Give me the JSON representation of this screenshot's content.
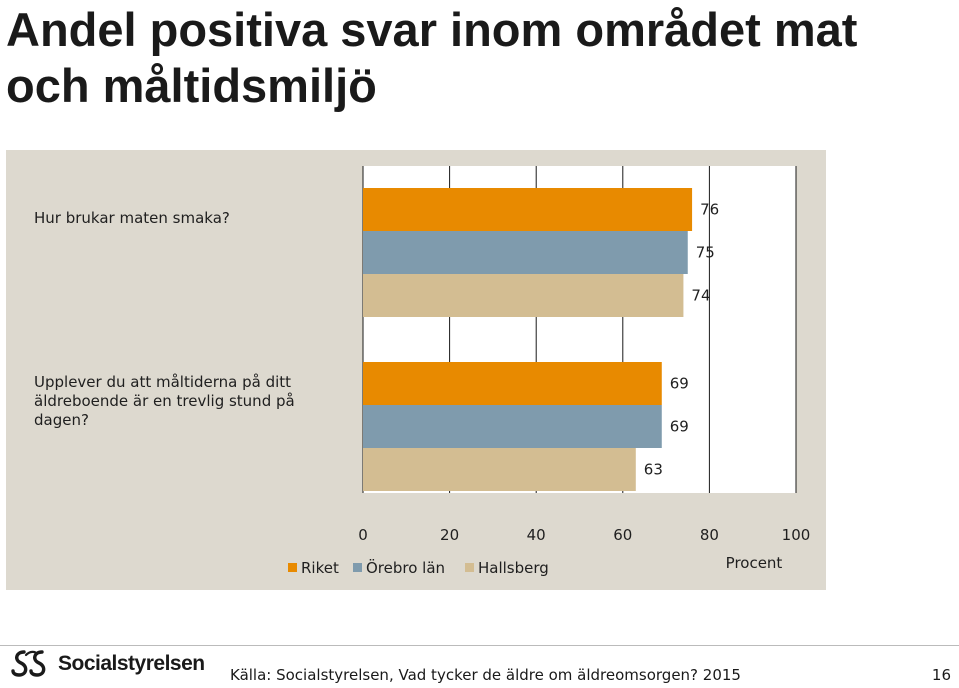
{
  "title": "Andel positiva svar inom området mat och måltidsmiljö",
  "chart_data": {
    "type": "bar",
    "orientation": "horizontal",
    "categories": [
      "Hur brukar maten smaka?",
      "Upplever du att måltiderna på ditt äldreboende är en trevlig stund på dagen?"
    ],
    "series": [
      {
        "name": "Riket",
        "color": "#e88a00",
        "values": [
          76,
          69
        ]
      },
      {
        "name": "Örebro län",
        "color": "#7f9bad",
        "values": [
          75,
          69
        ]
      },
      {
        "name": "Hallsberg",
        "color": "#d3bd92",
        "values": [
          74,
          63
        ]
      }
    ],
    "xlim": [
      0,
      100
    ],
    "xticks": [
      "0",
      "20",
      "40",
      "60",
      "80",
      "100"
    ],
    "xlabel": "Procent",
    "grid": true,
    "legend_position": "bottom-left"
  },
  "footer": {
    "logo_text": "Socialstyrelsen",
    "source": "Källa: Socialstyrelsen, Vad tycker de äldre om äldreomsorgen? 2015",
    "page_number": "16"
  }
}
